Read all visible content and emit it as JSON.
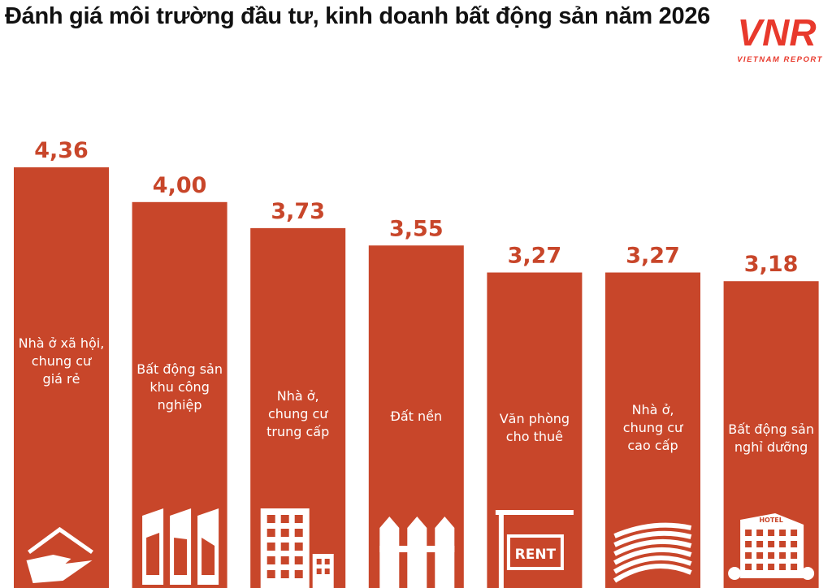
{
  "chart_data": {
    "type": "bar",
    "title": "Đánh giá môi trường đầu tư, kinh doanh bất động sản năm 2026",
    "categories": [
      "Nhà ở xã hội, chung cư giá rẻ",
      "Bất động sản khu công nghiệp",
      "Nhà ở, chung cư trung cấp",
      "Đất nền",
      "Văn phòng cho thuê",
      "Nhà ở, chung cư cao cấp",
      "Bất động sản nghỉ dưỡng"
    ],
    "category_lines": [
      [
        "Nhà ở xã hội,",
        "chung cư",
        "giá rẻ"
      ],
      [
        "Bất động sản",
        "khu công",
        "nghiệp"
      ],
      [
        "Nhà ở,",
        "chung cư",
        "trung cấp"
      ],
      [
        "Đất nền"
      ],
      [
        "Văn phòng",
        "cho thuê"
      ],
      [
        "Nhà ở,",
        "chung cư",
        "cao cấp"
      ],
      [
        "Bất động sản",
        "nghỉ dưỡng"
      ]
    ],
    "values": [
      4.36,
      4.0,
      3.73,
      3.55,
      3.27,
      3.27,
      3.18
    ],
    "value_labels": [
      "4,36",
      "4,00",
      "3,73",
      "3,55",
      "3,27",
      "3,27",
      "3,18"
    ],
    "icons": [
      "house-hand-icon",
      "industrial-buildings-icon",
      "apartment-icon",
      "fence-icon",
      "rent-sign-icon",
      "curved-tower-icon",
      "hotel-icon"
    ],
    "rent_sign_text": "RENT",
    "hotel_sign_text": "HOTEL",
    "xlabel": "",
    "ylabel": "",
    "grid": false,
    "legend": "none",
    "bar_color": "#c8462a"
  },
  "logo": {
    "mark": "VNR",
    "text": "VIETNAM REPORT",
    "color": "#e8392c"
  }
}
